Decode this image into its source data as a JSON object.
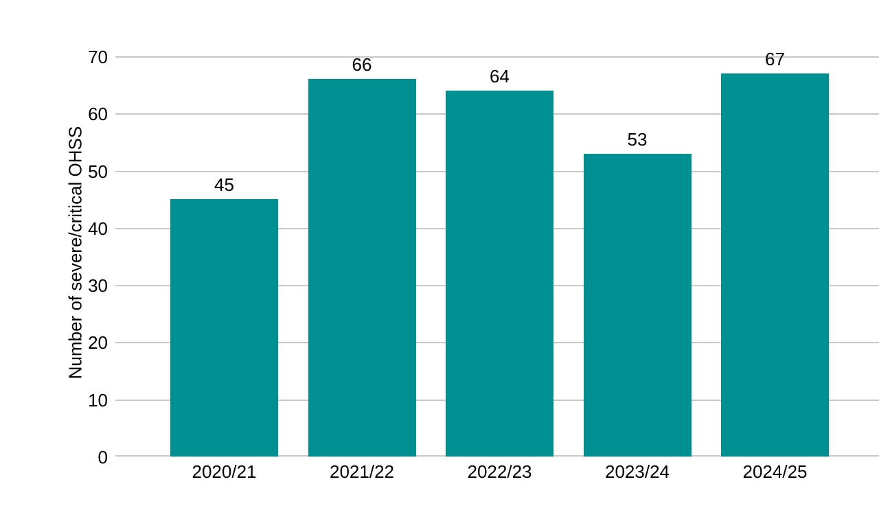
{
  "chart_data": {
    "type": "bar",
    "title": "",
    "xlabel": "",
    "ylabel": "Number of severe/critical OHSS",
    "categories": [
      "2020/21",
      "2021/22",
      "2022/23",
      "2023/24",
      "2024/25"
    ],
    "values": [
      45,
      66,
      64,
      53,
      67
    ],
    "value_labels_shown": true,
    "ylim": [
      0,
      70
    ],
    "yticks": [
      0,
      10,
      20,
      30,
      40,
      50,
      60,
      70
    ],
    "grid": "horizontal",
    "legend_position": "none",
    "bar_color": "#009092",
    "gridline_color": "#c8c8c8",
    "text_color": "#000000",
    "background_color": "#ffffff"
  }
}
